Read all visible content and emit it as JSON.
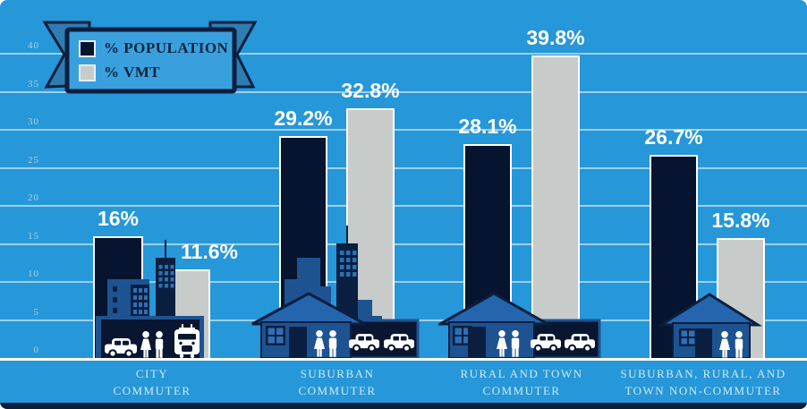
{
  "palette": {
    "bg": "#2697d8",
    "bar-navy": "#071430",
    "bar-gray": "#c7cbc9",
    "mid": "#1e5392",
    "roof": "#2565ad",
    "pane": "#2e6fb5",
    "panel": "#081631",
    "outline": "#0a1f40",
    "grid": "rgba(255,255,255,0.55)",
    "tick": "#a5d3ee",
    "cat": "#cfe9f8",
    "legend-text": "#0e2440",
    "ribbon": "#2e7db1",
    "plaque": "#3aa0dd",
    "footer": "#0a1f3c"
  },
  "legend": {
    "items": [
      {
        "label": "% POPULATION",
        "color": "#071430"
      },
      {
        "label": "% VMT",
        "color": "#c7cbc9"
      }
    ]
  },
  "chart_data": {
    "type": "bar",
    "categories": [
      "CITY COMMUTER",
      "SUBURBAN COMMUTER",
      "RURAL AND TOWN COMMUTER",
      "SUBURBAN, RURAL, AND TOWN NON-COMMUTER"
    ],
    "series": [
      {
        "name": "% POPULATION",
        "color": "#071430",
        "values": [
          16,
          29.2,
          28.1,
          26.7
        ],
        "labels": [
          "16%",
          "29.2%",
          "28.1%",
          "26.7%"
        ]
      },
      {
        "name": "% VMT",
        "color": "#c7cbc9",
        "values": [
          11.6,
          32.8,
          39.8,
          15.8
        ],
        "labels": [
          "11.6%",
          "32.8%",
          "39.8%",
          "15.8%"
        ]
      }
    ],
    "y_ticks": [
      0,
      5,
      10,
      15,
      20,
      25,
      30,
      35,
      40
    ],
    "ylim": [
      0,
      40
    ],
    "grid": true,
    "legend_position": "top-left",
    "xlabel": "",
    "ylabel": ""
  },
  "category_labels": [
    {
      "line1": "CITY",
      "line2": "COMMUTER"
    },
    {
      "line1": "SUBURBAN",
      "line2": "COMMUTER"
    },
    {
      "line1": "RURAL AND TOWN",
      "line2": "COMMUTER"
    },
    {
      "line1": "SUBURBAN, RURAL, AND",
      "line2": "TOWN NON-COMMUTER"
    }
  ],
  "icons": [
    "car-icon",
    "woman-icon",
    "man-icon",
    "tram-icon",
    "house-icon",
    "skyline-icon",
    "garage-icon",
    "ribbon-banner"
  ]
}
